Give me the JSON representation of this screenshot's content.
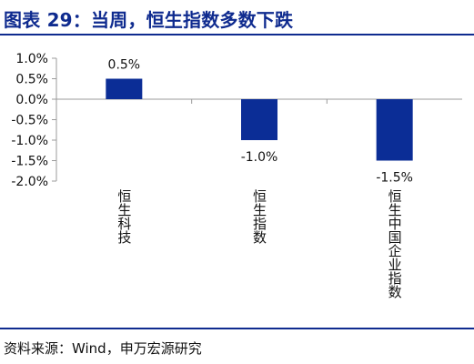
{
  "title": "图表 29：当周，恒生指数多数下跌",
  "source": "资料来源：Wind，申万宏源研究",
  "colors": {
    "brand": "#0f2b8f",
    "bar": "#0b2d96",
    "axis": "#9b9b9b",
    "text": "#111111"
  },
  "chart_data": {
    "type": "bar",
    "categories": [
      "恒生科技",
      "恒生指数",
      "恒生中国企业指数"
    ],
    "values": [
      0.5,
      -1.0,
      -1.5
    ],
    "value_labels": [
      "0.5%",
      "-1.0%",
      "-1.5%"
    ],
    "y_ticks": [
      1.0,
      0.5,
      0.0,
      -0.5,
      -1.0,
      -1.5,
      -2.0
    ],
    "y_tick_labels": [
      "1.0%",
      "0.5%",
      "0.0%",
      "-0.5%",
      "-1.0%",
      "-1.5%",
      "-2.0%"
    ],
    "ylim": [
      -2.0,
      1.0
    ],
    "grid": false,
    "legend": "none",
    "category_label_orientation": "vertical"
  }
}
